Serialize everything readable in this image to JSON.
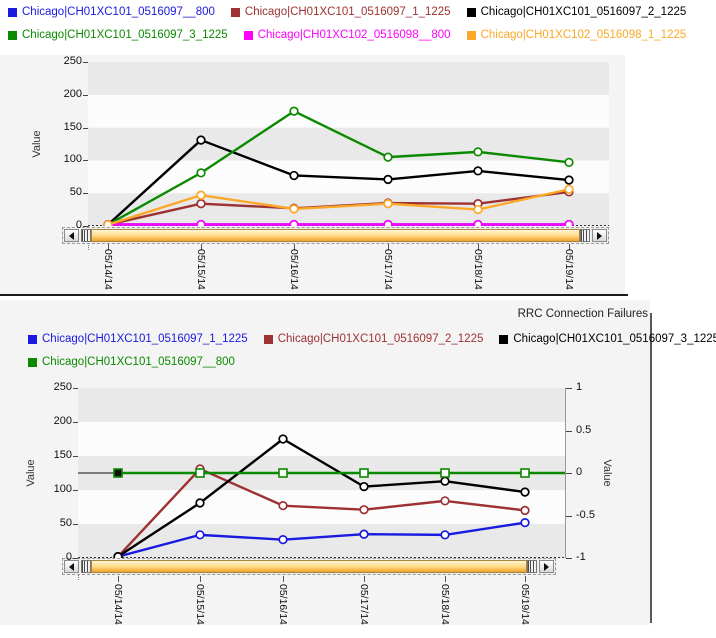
{
  "ui": {
    "x_axis_dates": [
      "05/14/14",
      "05/15/14",
      "05/16/14",
      "05/17/14",
      "05/18/14",
      "05/19/14"
    ],
    "scrollbar": {
      "left_arrow": "left-arrow",
      "right_arrow": "right-arrow",
      "thumb": "zoom-range-thumb"
    }
  },
  "chart_data": [
    {
      "type": "line",
      "title": "",
      "ylabel": "Value",
      "xlabel": "",
      "categories": [
        "05/14/14",
        "05/15/14",
        "05/16/14",
        "05/17/14",
        "05/18/14",
        "05/19/14"
      ],
      "ylim": [
        0,
        250
      ],
      "yticks": [
        0,
        50,
        100,
        150,
        200,
        250
      ],
      "grid": "alternating-horizontal-bands",
      "legend_position": "top",
      "series": [
        {
          "name": "Chicago|CH01XC101_0516097__800",
          "color": "#1a1ae0",
          "marker": "circle",
          "axis": "left",
          "values": [
            0,
            0,
            0,
            0,
            0,
            0
          ]
        },
        {
          "name": "Chicago|CH01XC101_0516097_1_1225",
          "color": "#9e3132",
          "marker": "circle",
          "axis": "left",
          "values": [
            2,
            34,
            27,
            35,
            34,
            52
          ]
        },
        {
          "name": "Chicago|CH01XC101_0516097_2_1225",
          "color": "#000000",
          "marker": "circle",
          "axis": "left",
          "values": [
            2,
            131,
            77,
            71,
            84,
            70
          ]
        },
        {
          "name": "Chicago|CH01XC101_0516097_3_1225",
          "color": "#0b8a00",
          "marker": "circle",
          "axis": "left",
          "values": [
            2,
            81,
            175,
            105,
            113,
            97
          ]
        },
        {
          "name": "Chicago|CH01XC102_0516098__800",
          "color": "#ff00ff",
          "marker": "circle",
          "axis": "left",
          "values": [
            0,
            0,
            0,
            0,
            0,
            0
          ]
        },
        {
          "name": "Chicago|CH01XC102_0516098_1_1225",
          "color": "#fca828",
          "marker": "circle",
          "axis": "left",
          "values": [
            2,
            47,
            26,
            34,
            25,
            56
          ]
        }
      ]
    },
    {
      "type": "line",
      "title": "RRC Connection Failures",
      "ylabel": "Value",
      "right_ylabel": "Value",
      "xlabel": "",
      "categories": [
        "05/14/14",
        "05/15/14",
        "05/16/14",
        "05/17/14",
        "05/18/14",
        "05/19/14"
      ],
      "ylim": [
        0,
        250
      ],
      "yticks": [
        0,
        50,
        100,
        150,
        200,
        250
      ],
      "right_ylim": [
        -1,
        1
      ],
      "right_yticks": [
        1,
        0.5,
        0,
        -0.5,
        -1
      ],
      "grid": "alternating-horizontal-bands",
      "legend_position": "top",
      "series": [
        {
          "name": "Chicago|CH01XC101_0516097_1_1225",
          "color": "#1a1ae0",
          "marker": "circle",
          "axis": "left",
          "values": [
            2,
            34,
            27,
            35,
            34,
            52
          ]
        },
        {
          "name": "Chicago|CH01XC101_0516097_2_1225",
          "color": "#9e3132",
          "marker": "circle",
          "axis": "left",
          "values": [
            2,
            131,
            77,
            71,
            84,
            70
          ]
        },
        {
          "name": "Chicago|CH01XC101_0516097_3_1225",
          "color": "#000000",
          "marker": "circle",
          "axis": "left",
          "values": [
            2,
            81,
            175,
            105,
            113,
            97
          ]
        },
        {
          "name": "Chicago|CH01XC101_0516097__800",
          "color": "#0b8a00",
          "marker": "square",
          "axis": "right",
          "first_marker_filled": true,
          "values": [
            0,
            0,
            0,
            0,
            0,
            0
          ]
        }
      ]
    }
  ],
  "colors": {
    "band_gray": "#e9e9e9",
    "band_white": "#fcfcfc",
    "panel_bg": "#f4f4f4",
    "scroll_thumb_orange": "#efa22b",
    "separator_black": "#1b1b1b"
  }
}
